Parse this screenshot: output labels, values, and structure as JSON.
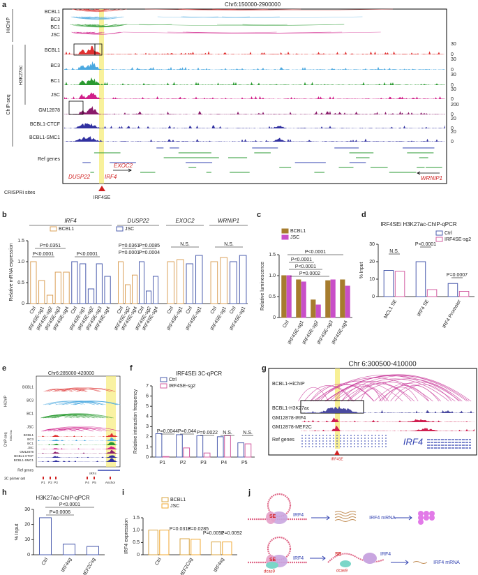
{
  "panel_a": {
    "letter": "a",
    "title": "Chr6:150000-2900000",
    "hichip_label": "HiChIP",
    "hichip_tracks": [
      "BCBL1",
      "BC3",
      "BC1",
      "JSC"
    ],
    "chipseq_label": "ChIP-seq",
    "h3k27ac_label": "H3K27ac",
    "chip_tracks": [
      "BCBL1",
      "BC3",
      "BC1",
      "JSC",
      "GM12878",
      "BCBL1-CTCF",
      "BCBL1-SMC1"
    ],
    "scale_labels": [
      "30",
      "0",
      "30",
      "0",
      "30",
      "0",
      "30",
      "0",
      "200",
      "0",
      "20",
      "0",
      "20",
      "0"
    ],
    "ref_genes_label": "Ref genes",
    "gene_labels": [
      "EXOC2",
      "DUSP22",
      "IRF4",
      "WRNIP1"
    ],
    "crispri_label": "CRISPRi sites",
    "site_label": "IRF4SE"
  },
  "panel_e": {
    "letter": "e",
    "title": "Chr6:285000-420000",
    "hichip_label": "HiChIP",
    "hichip_tracks": [
      "BCBL1",
      "BC3",
      "BC1",
      "JSC"
    ],
    "chipseq_label": "ChIP-seq",
    "h3k27ac_label": "H3K27ac",
    "chip_tracks": [
      "BCBL1",
      "BC3",
      "BC1",
      "JSC",
      "GM12878",
      "BCBL1-CTCF",
      "BCBL1-SMC1"
    ],
    "ref_genes_label": "Ref genes",
    "primer_label": "3C primer set",
    "primers": [
      "P1",
      "P2",
      "P3",
      "P4",
      "P5",
      "Anchor"
    ],
    "gene_label": "IRF4"
  },
  "panel_g": {
    "letter": "g",
    "title": "Chr 6:300500-410000",
    "tracks": [
      "BCBL1-HiChIP",
      "BCBL1-H3K27ac",
      "GM12878-IRF4",
      "GM12878-MEF2C",
      "Ref genes"
    ],
    "gene_label": "IRF4",
    "site_label": "IRF4SE"
  },
  "panel_j": {
    "letter": "j",
    "top": [
      "SE",
      "IRF4",
      "IRF4 mRNA"
    ],
    "bottom": [
      "SE",
      "IRF4",
      "dcas9",
      "SE",
      "dcas9",
      "IRF4",
      "IRF4 mRNA"
    ]
  },
  "chart_data": [
    {
      "type": "bar-groups",
      "panel": "b",
      "ylabel": "Relative mRNA expression",
      "bar_style": "outline",
      "series": [
        {
          "name": "BCBL1",
          "color": "#dba15a"
        },
        {
          "name": "JSC",
          "color": "#4b5cad"
        }
      ],
      "ylim": [
        0,
        1.5
      ],
      "yticks": [
        0,
        0.5,
        {
          "value": 1,
          "label": "1.0"
        },
        1.5
      ],
      "groups": [
        {
          "title": "IRF4",
          "categories": [
            "Ctrl",
            "IRF4SE-sg1",
            "IRF4SE-sg2",
            "IRF4SE-sg3",
            "IRF4SE-sg4"
          ],
          "values": [
            [
              1.0,
              0.55,
              0.2,
              0.75,
              0.75
            ],
            [
              1.0,
              0.95,
              0.35,
              0.95,
              0.65
            ]
          ],
          "annotations": [
            "P=0.0351",
            "P<0.0001",
            "P<0.0001"
          ]
        },
        {
          "title": "DUSP22",
          "categories": [
            "Ctrl",
            "IRF4SE-sg2",
            "IRF4SE-sg4"
          ],
          "values": [
            [
              1.0,
              0.45,
              0.68
            ],
            [
              1.0,
              0.3,
              0.65
            ]
          ],
          "annotations": [
            "P=0.0361",
            "P=0.0001",
            "P=0.0085",
            "P=0.0004"
          ]
        },
        {
          "title": "EXOC2",
          "categories": [
            "Ctrl",
            "IRF4SE-sg1"
          ],
          "values": [
            [
              1.0,
              1.05
            ],
            [
              0.95,
              1.15
            ]
          ],
          "annotations": [
            "N.S."
          ]
        },
        {
          "title": "WRNIP1",
          "categories": [
            "Ctrl",
            "IRF4SE-sg1"
          ],
          "values": [
            [
              1.0,
              1.1
            ],
            [
              1.0,
              1.15
            ]
          ],
          "annotations": [
            "N.S."
          ]
        }
      ]
    },
    {
      "type": "bar",
      "panel": "c",
      "ylabel": "Relative luminescence",
      "bar_style": "filled",
      "categories": [
        "Ctrl",
        "IRF4SE-sg1",
        "IRF4SE-sg2",
        "IRF4SE-sg3",
        "IRF4SE-sg4"
      ],
      "series": [
        {
          "name": "BCBL1",
          "color": "#a67c2e",
          "values": [
            1.0,
            0.9,
            0.42,
            0.88,
            0.9
          ]
        },
        {
          "name": "JSC",
          "color": "#c84fc8",
          "values": [
            1.0,
            0.85,
            0.3,
            0.9,
            0.75
          ]
        }
      ],
      "ylim": [
        0,
        1.5
      ],
      "yticks": [
        0,
        0.5,
        {
          "value": 1,
          "label": "1.0"
        },
        1.5
      ],
      "annotations": [
        "P<0.0001",
        "P<0.0001",
        "P=0.0002",
        "P<0.0001"
      ]
    },
    {
      "type": "bar",
      "panel": "d",
      "title": "IRF4SEi H3K27ac-ChIP-qPCR",
      "ylabel": "% Input",
      "bar_style": "outline",
      "categories": [
        "MCL1 SE",
        "IRF4 SE",
        "IRF4 Promoter"
      ],
      "series": [
        {
          "name": "Ctrl",
          "color": "#4b5cad",
          "values": [
            15,
            20,
            7.5
          ]
        },
        {
          "name": "IRF4SE-sg2",
          "color": "#d35ca0",
          "values": [
            14.5,
            4,
            3
          ]
        }
      ],
      "ylim": [
        0,
        30
      ],
      "yticks": [
        0,
        10,
        20,
        30
      ],
      "annotations": [
        "N.S.",
        "P<0.0001",
        "P=0.0007"
      ]
    },
    {
      "type": "bar",
      "panel": "f",
      "title": "IRF4SEi 3C-qPCR",
      "ylabel": "Relative interaction frequency",
      "bar_style": "outline",
      "categories": [
        "P1",
        "P2",
        "P3",
        "P4",
        "P5"
      ],
      "series": [
        {
          "name": "Ctrl",
          "color": "#4b5cad",
          "values": [
            2.3,
            2.2,
            2.1,
            2.0,
            1.4
          ]
        },
        {
          "name": "IRF4SE-sg2",
          "color": "#d35ca0",
          "values": [
            0.05,
            0.9,
            0.4,
            2.1,
            1.3
          ]
        }
      ],
      "ylim": [
        0,
        7
      ],
      "yticks": [
        0,
        1,
        2,
        3,
        4,
        5,
        6,
        7
      ],
      "annotations": [
        "P=0.0044",
        "P=0.044",
        "P=0.0022",
        "N.S.",
        "N.S."
      ]
    },
    {
      "type": "bar",
      "panel": "h",
      "title": "H3K27ac-ChIP-qPCR",
      "ylabel": "% Input",
      "bar_style": "outline",
      "color": "#4b5cad",
      "categories": [
        "Ctrl",
        "IRF4sg",
        "MEF2Csg"
      ],
      "values": [
        24.5,
        7,
        5.5
      ],
      "ylim": [
        0,
        30
      ],
      "yticks": [
        0,
        10,
        20,
        30
      ],
      "annotations": [
        "P<0.0001",
        "P=0.0006"
      ]
    },
    {
      "type": "bar",
      "panel": "i",
      "ylabel": "IRF4 expression",
      "bar_style": "outline",
      "categories": [
        "Ctrl",
        "MEF2Csg",
        "IRF4sg"
      ],
      "series": [
        {
          "name": "BCBL1",
          "color": "#d9a441",
          "values": [
            1.0,
            0.65,
            0.52
          ]
        },
        {
          "name": "JSC",
          "color": "#f0a830",
          "values": [
            1.0,
            0.63,
            0.52
          ]
        }
      ],
      "ylim": [
        0,
        1.5
      ],
      "yticks": [
        0,
        0.5,
        {
          "value": 1,
          "label": "1.0"
        },
        1.5
      ],
      "annotations": [
        "P=0.0313",
        "P=0.0285",
        "P=0.0052",
        "P=0.0092"
      ]
    }
  ]
}
